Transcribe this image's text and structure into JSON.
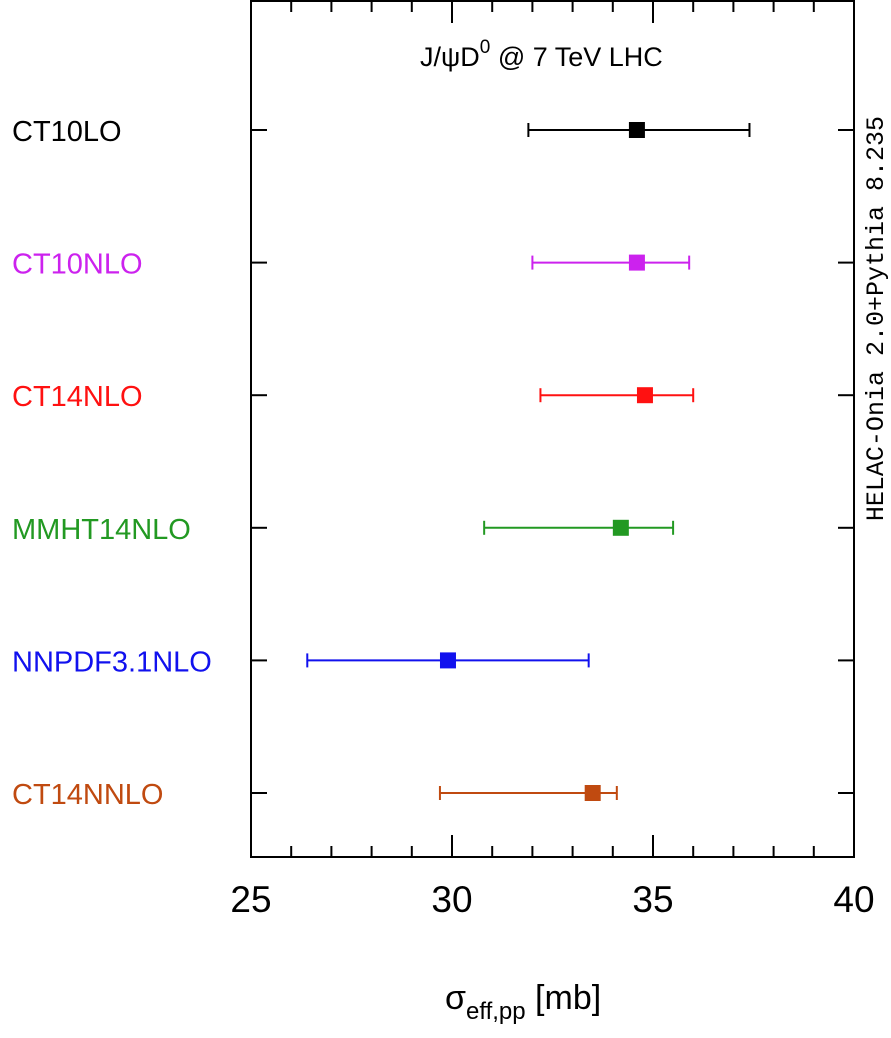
{
  "chart_data": {
    "type": "scatter",
    "title_main": "J/ψD",
    "title_sup": "0",
    "title_rest": " @ 7 TeV LHC",
    "side_label": "HELAC-Onia 2.0+Pythia 8.235",
    "xlabel_main": "σ",
    "xlabel_sub": "eff,pp",
    "xlabel_unit": " [mb]",
    "xlim": [
      25,
      40
    ],
    "x_ticks": [
      "25",
      "30",
      "35",
      "40"
    ],
    "series": [
      {
        "name": "CT10LO",
        "color": "#000000",
        "value": 34.6,
        "err_low": 31.9,
        "err_high": 37.4
      },
      {
        "name": "CT10NLO",
        "color": "#cc22ee",
        "value": 34.6,
        "err_low": 32.0,
        "err_high": 35.9
      },
      {
        "name": "CT14NLO",
        "color": "#ff1111",
        "value": 34.8,
        "err_low": 32.2,
        "err_high": 36.0
      },
      {
        "name": "MMHT14NLO",
        "color": "#229922",
        "value": 34.2,
        "err_low": 30.8,
        "err_high": 35.5
      },
      {
        "name": "NNPDF3.1NLO",
        "color": "#1111ee",
        "value": 29.9,
        "err_low": 26.4,
        "err_high": 33.4
      },
      {
        "name": "CT14NNLO",
        "color": "#c04a10",
        "value": 33.5,
        "err_low": 29.7,
        "err_high": 34.1
      }
    ],
    "grid": false,
    "legend": "left"
  }
}
